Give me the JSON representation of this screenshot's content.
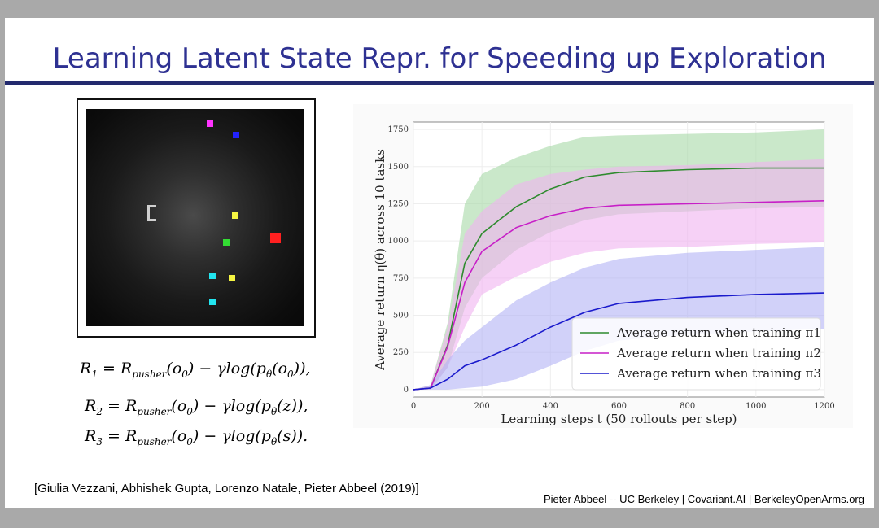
{
  "slide": {
    "title": "Learning Latent State Repr. for Speeding up Exploration",
    "citation": "[Giulia Vezzani, Abhishek Gupta, Lorenzo Natale, Pieter Abbeel (2019)]",
    "footer": "Pieter Abbeel -- UC Berkeley | Covariant.AI | BerkeleyOpenArms.org",
    "equations": [
      {
        "lhs": "R",
        "lhs_sub": "1",
        "rhs_a": "= R",
        "rhs_sub": "pusher",
        "rhs_b": "(o",
        "o_sub": "0",
        "rhs_c": ") − γlog(p",
        "p_sub": "θ",
        "rhs_d": "(o",
        "arg_sub": "0",
        "rhs_e": ")),"
      },
      {
        "lhs": "R",
        "lhs_sub": "2",
        "rhs_a": "= R",
        "rhs_sub": "pusher",
        "rhs_b": "(o",
        "o_sub": "0",
        "rhs_c": ") − γlog(p",
        "p_sub": "θ",
        "rhs_d": "(z",
        "arg_sub": "",
        "rhs_e": ")),"
      },
      {
        "lhs": "R",
        "lhs_sub": "3",
        "rhs_a": "= R",
        "rhs_sub": "pusher",
        "rhs_b": "(o",
        "o_sub": "0",
        "rhs_c": ") − γlog(p",
        "p_sub": "θ",
        "rhs_d": "(s",
        "arg_sub": "",
        "rhs_e": "))."
      }
    ],
    "colors": {
      "title": "#2e3192",
      "rule": "#232a6e"
    }
  },
  "simulation": {
    "objects": [
      "magenta",
      "blue",
      "yellow",
      "red",
      "green",
      "cyan",
      "yellow",
      "cyan"
    ],
    "colors": {
      "magenta": "#ff33ff",
      "blue": "#2222ff",
      "yellow": "#f5f542",
      "red": "#ff2020",
      "green": "#33dd33",
      "cyan": "#22e5f0"
    }
  },
  "chart_data": {
    "type": "line",
    "xlabel": "Learning steps t (50 rollouts per step)",
    "ylabel": "Average return η(θ) across 10 tasks",
    "xlim": [
      0,
      1200
    ],
    "ylim": [
      -50,
      1800
    ],
    "xticks": [
      0,
      200,
      400,
      600,
      800,
      1000,
      1200
    ],
    "yticks": [
      0,
      250,
      500,
      750,
      1000,
      1250,
      1500,
      1750
    ],
    "grid": true,
    "legend_position": "bottom-right",
    "x": [
      0,
      50,
      100,
      150,
      200,
      300,
      400,
      500,
      600,
      800,
      1000,
      1200
    ],
    "series": [
      {
        "name": "Average return when training π1",
        "color": "#2e8b2e",
        "band_color": "#a6d9a6",
        "values": [
          0,
          10,
          300,
          850,
          1050,
          1230,
          1350,
          1430,
          1460,
          1480,
          1490,
          1490
        ],
        "upper": [
          0,
          30,
          450,
          1250,
          1450,
          1560,
          1640,
          1700,
          1710,
          1720,
          1730,
          1750
        ],
        "lower": [
          0,
          0,
          150,
          550,
          750,
          940,
          1060,
          1140,
          1180,
          1200,
          1220,
          1230
        ]
      },
      {
        "name": "Average return when training π2",
        "color": "#c71fc7",
        "band_color": "#f0b3f0",
        "values": [
          0,
          10,
          290,
          720,
          930,
          1090,
          1170,
          1220,
          1240,
          1250,
          1260,
          1270
        ],
        "upper": [
          0,
          30,
          420,
          1050,
          1200,
          1380,
          1450,
          1480,
          1500,
          1510,
          1530,
          1550
        ],
        "lower": [
          0,
          0,
          150,
          420,
          640,
          760,
          860,
          920,
          950,
          960,
          980,
          990
        ]
      },
      {
        "name": "Average return when training π3",
        "color": "#1a1acc",
        "band_color": "#b3b3f5",
        "values": [
          0,
          10,
          70,
          160,
          200,
          300,
          420,
          520,
          580,
          620,
          640,
          650
        ],
        "upper": [
          0,
          30,
          200,
          330,
          420,
          600,
          720,
          820,
          880,
          920,
          940,
          960
        ],
        "lower": [
          0,
          0,
          0,
          10,
          20,
          70,
          160,
          260,
          330,
          370,
          390,
          410
        ]
      }
    ]
  }
}
